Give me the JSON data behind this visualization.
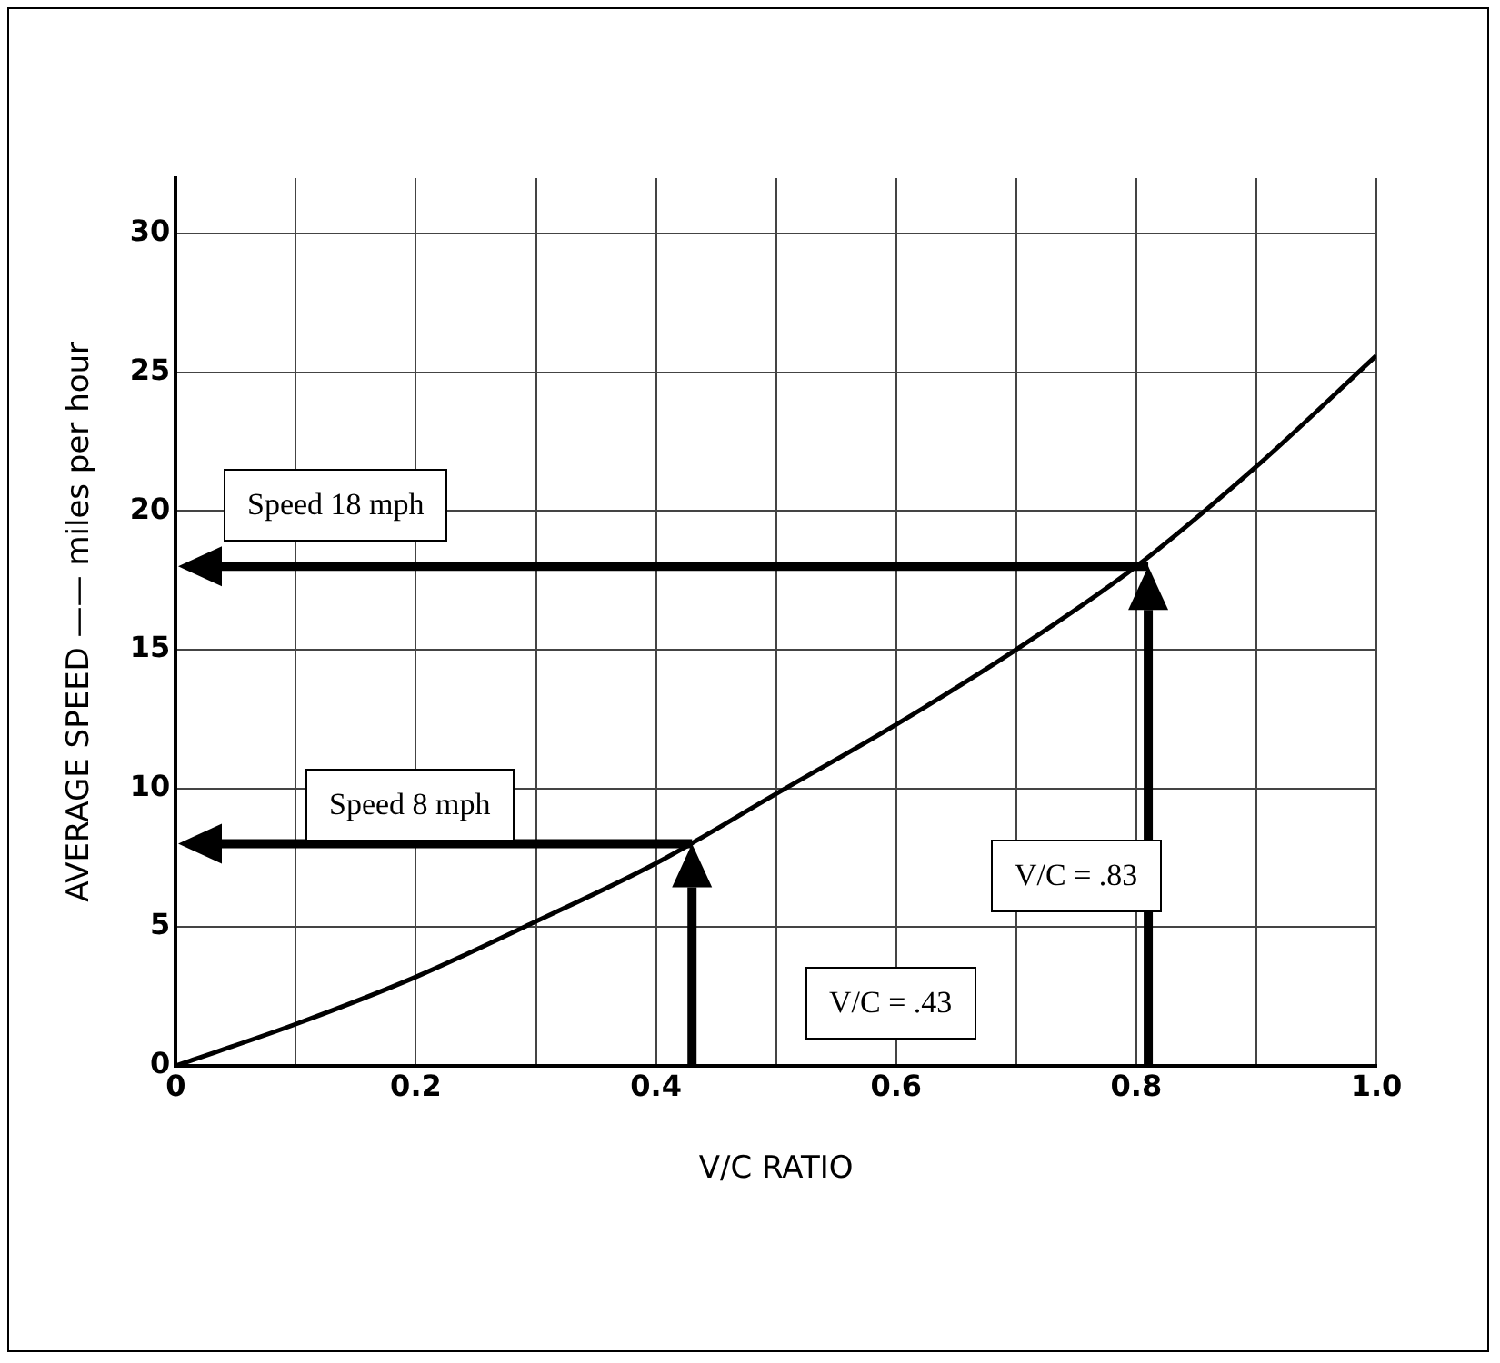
{
  "chart_data": {
    "type": "line",
    "xlabel": "V/C RATIO",
    "ylabel": "AVERAGE SPEED —— miles per hour",
    "x": [
      0,
      0.1,
      0.2,
      0.3,
      0.4,
      0.5,
      0.6,
      0.7,
      0.8,
      0.9,
      1.0
    ],
    "series": [
      {
        "color": "#000000",
        "values": [
          0,
          1.5,
          3.2,
          5.2,
          7.3,
          9.8,
          12.3,
          15,
          18,
          21.6,
          25.6
        ]
      }
    ],
    "xlim": [
      0,
      1.0
    ],
    "xticks": [
      0,
      {
        "value": 0.1,
        "label": null
      },
      0.2,
      {
        "value": 0.3,
        "label": null
      },
      0.4,
      {
        "value": 0.5,
        "label": null
      },
      0.6,
      {
        "value": 0.7,
        "label": null
      },
      0.8,
      {
        "value": 0.9,
        "label": null
      },
      {
        "value": 1.0,
        "label": "1.0"
      }
    ],
    "ylim": [
      0,
      32
    ],
    "yticks": [
      0,
      5,
      10,
      15,
      20,
      25,
      30
    ],
    "grid": true,
    "marker": "none",
    "line_style": "solid",
    "annotations": [
      "Speed 18 mph",
      "V/C = .83",
      "Speed 8 mph",
      "V/C = .43"
    ]
  }
}
